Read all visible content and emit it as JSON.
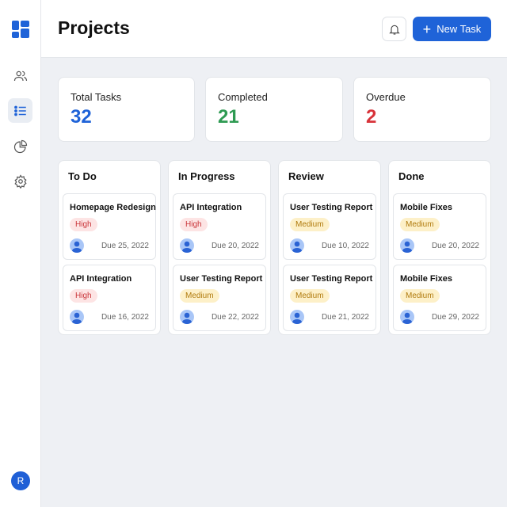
{
  "header": {
    "title": "Projects",
    "new_task_label": "New Task"
  },
  "sidebar": {
    "items": [
      "dashboard",
      "team",
      "tasks",
      "reports",
      "settings"
    ],
    "active": "tasks",
    "user_initial": "R"
  },
  "stats": [
    {
      "label": "Total Tasks",
      "value": "32",
      "color": "#1f63d8"
    },
    {
      "label": "Completed",
      "value": "21",
      "color": "#2e9a52"
    },
    {
      "label": "Overdue",
      "value": "2",
      "color": "#d8333a"
    }
  ],
  "columns": [
    {
      "title": "To Do",
      "cards": [
        {
          "title": "Homepage Redesign",
          "priority": "High",
          "due": "Due 25, 2022"
        },
        {
          "title": "API Integration",
          "priority": "High",
          "due": "Due 16, 2022"
        }
      ]
    },
    {
      "title": "In Progress",
      "cards": [
        {
          "title": "API Integration",
          "priority": "High",
          "due": "Due 20, 2022"
        },
        {
          "title": "User Testing Report",
          "priority": "Medium",
          "due": "Due 22, 2022"
        }
      ]
    },
    {
      "title": "Review",
      "cards": [
        {
          "title": "User Testing Report",
          "priority": "Medium",
          "due": "Due 10, 2022"
        },
        {
          "title": "User Testing Report",
          "priority": "Medium",
          "due": "Due 21, 2022"
        }
      ]
    },
    {
      "title": "Done",
      "cards": [
        {
          "title": "Mobile Fixes",
          "priority": "Medium",
          "due": "Due 20, 2022"
        },
        {
          "title": "Mobile Fixes",
          "priority": "Medium",
          "due": "Due 29, 2022"
        }
      ]
    }
  ]
}
